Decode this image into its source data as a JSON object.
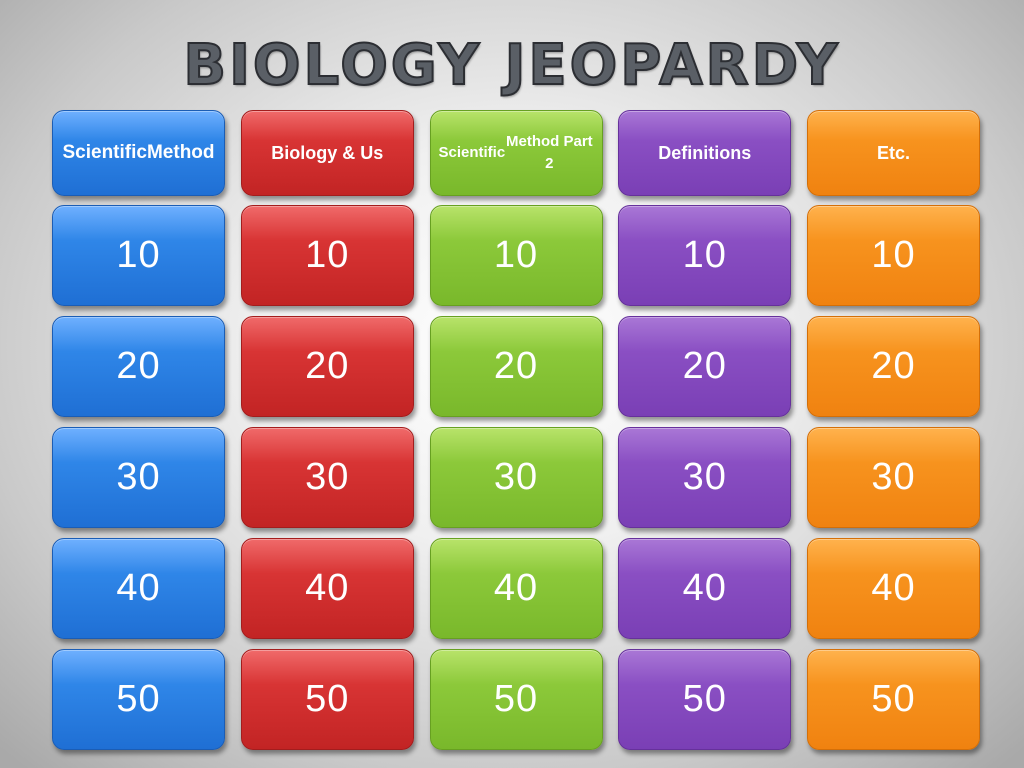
{
  "title": "BIOLOGY JEOPARDY",
  "categories": [
    {
      "lines": [
        "Scientific",
        "Method"
      ],
      "color": "#2f86e8"
    },
    {
      "lines": [
        "Biology & Us"
      ],
      "color": "#d83434"
    },
    {
      "lines": [
        "Scientific",
        "Method Part 2"
      ],
      "color": "#8cc93a"
    },
    {
      "lines": [
        "Definitions"
      ],
      "color": "#8a4fc3"
    },
    {
      "lines": [
        "Etc."
      ],
      "color": "#f7931e"
    }
  ],
  "values": [
    "10",
    "20",
    "30",
    "40",
    "50"
  ]
}
